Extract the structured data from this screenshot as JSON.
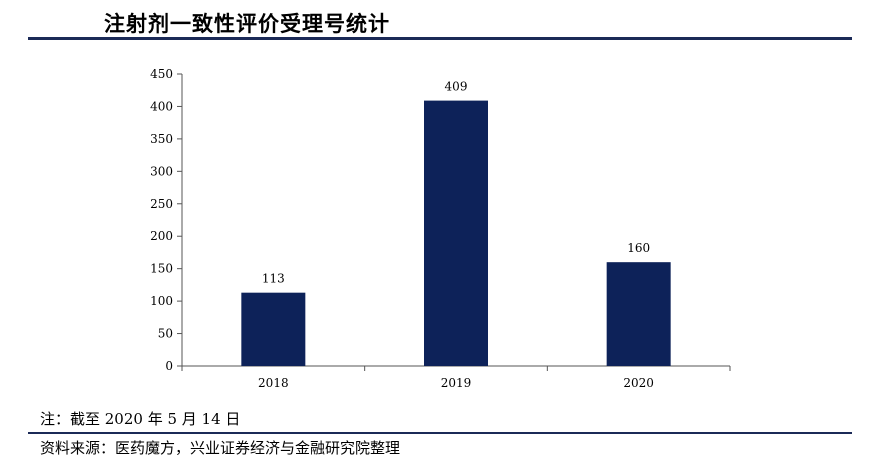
{
  "page": {
    "title": "注射剂一致性评价受理号统计",
    "note": "注：截至 2020 年 5 月 14 日",
    "source": "资料来源：医药魔方，兴业证券经济与金融研究院整理"
  },
  "colors": {
    "bar": "#0d2259",
    "rule": "#1b2a57",
    "axis": "#555555"
  },
  "chart_data": {
    "type": "bar",
    "categories": [
      "2018",
      "2019",
      "2020"
    ],
    "values": [
      113,
      409,
      160
    ],
    "data_labels": [
      "113",
      "409",
      "160"
    ],
    "yticks": [
      0,
      50,
      100,
      150,
      200,
      250,
      300,
      350,
      400,
      450
    ],
    "ylim": [
      0,
      450
    ],
    "title": "",
    "xlabel": "",
    "ylabel": "",
    "grid": false,
    "legend": "none"
  }
}
